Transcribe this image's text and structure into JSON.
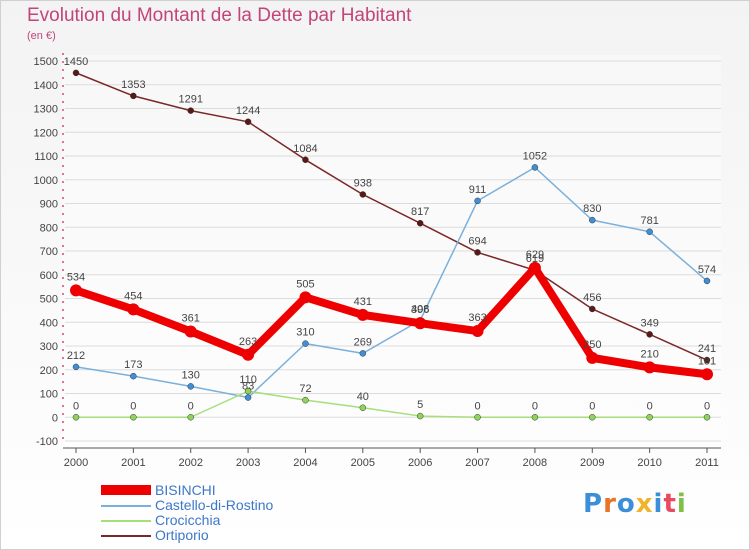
{
  "header": {
    "title": "Evolution du Montant de la Dette par Habitant",
    "unit": "(en €)"
  },
  "logo": {
    "text": "Proxiti",
    "letter_colors": [
      "#3a8fd8",
      "#e8742a",
      "#3a8fd8",
      "#f0b429",
      "#3a8fd8",
      "#e84a5f",
      "#7dc142"
    ]
  },
  "chart_data": {
    "type": "line",
    "x": [
      "2000",
      "2001",
      "2002",
      "2003",
      "2004",
      "2005",
      "2006",
      "2007",
      "2008",
      "2009",
      "2010",
      "2011"
    ],
    "ylim": [
      -100,
      1500
    ],
    "yticks": [
      -100,
      0,
      100,
      200,
      300,
      400,
      500,
      600,
      700,
      800,
      900,
      1000,
      1100,
      1200,
      1300,
      1400,
      1500
    ],
    "grid": "horizontal",
    "legend_position": "bottom-left",
    "series": [
      {
        "name": "Ortiporio",
        "color": "#7a2828",
        "dot_color": "#5a1818",
        "values": [
          1450,
          1353,
          1291,
          1244,
          1084,
          938,
          817,
          694,
          619,
          456,
          349,
          241
        ]
      },
      {
        "name": "Castello-di-Rostino",
        "color": "#7ab0dc",
        "dot_color": "#3f8fd6",
        "values": [
          212,
          173,
          130,
          83,
          310,
          269,
          408,
          911,
          1052,
          830,
          781,
          574
        ]
      },
      {
        "name": "Crocicchia",
        "color": "#a6de7a",
        "dot_color": "#8fd45a",
        "values": [
          0,
          0,
          0,
          110,
          72,
          40,
          5,
          0,
          0,
          0,
          0,
          0
        ]
      },
      {
        "name": "BISINCHI",
        "color": "#ee0000",
        "dot_color": "#ee0000",
        "values": [
          534,
          454,
          361,
          263,
          505,
          431,
          396,
          363,
          629,
          250,
          210,
          181
        ]
      }
    ],
    "legend_order": [
      "BISINCHI",
      "Castello-di-Rostino",
      "Crocicchia",
      "Ortiporio"
    ]
  }
}
